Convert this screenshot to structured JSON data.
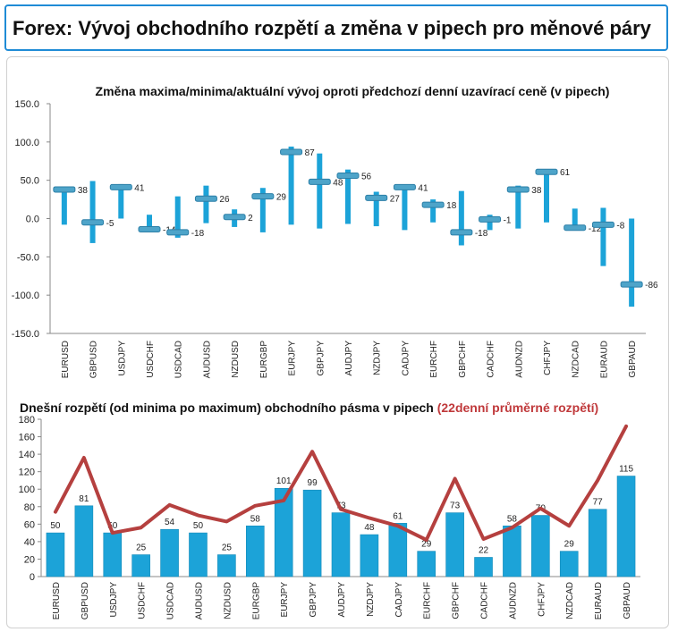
{
  "header": {
    "title": "Forex: Vývoj obchodního rozpětí a změna v pipech pro měnové páry"
  },
  "colors": {
    "accent": "#1f8bd6",
    "bar": "#1ca3d8",
    "line": "#b5403f"
  },
  "chart_data": [
    {
      "type": "bar",
      "title": "Změna maxima/minima/aktuální vývoj oproti předchozí denní uzavírací ceně (v pipech)",
      "categories": [
        "EURUSD",
        "GBPUSD",
        "USDJPY",
        "USDCHF",
        "USDCAD",
        "AUDUSD",
        "NZDUSD",
        "EURGBP",
        "EURJPY",
        "GBPJPY",
        "AUDJPY",
        "NZDJPY",
        "CADJPY",
        "EURCHF",
        "GBPCHF",
        "CADCHF",
        "AUDNZD",
        "CHFJPY",
        "NZDCAD",
        "EURAUD",
        "GBPAUD"
      ],
      "series": [
        {
          "values_high": [
            40,
            49,
            45,
            5,
            29,
            43,
            12,
            40,
            94,
            85,
            64,
            35,
            44,
            25,
            36,
            5,
            43,
            64,
            13,
            14,
            0
          ]
        },
        {
          "values_low": [
            -8,
            -32,
            0,
            -18,
            -25,
            -6,
            -11,
            -18,
            -8,
            -13,
            -7,
            -10,
            -15,
            -5,
            -35,
            -15,
            -13,
            -5,
            -12,
            -62,
            -115
          ]
        },
        {
          "values": [
            38,
            -5,
            41,
            -14,
            -18,
            26,
            2,
            29,
            87,
            48,
            56,
            27,
            41,
            18,
            -18,
            -1,
            38,
            61,
            -12,
            -8,
            -86
          ]
        }
      ],
      "data_labels": [
        "38",
        "-5",
        "41",
        "-14",
        "-18",
        "26",
        "2",
        "29",
        "87",
        "48",
        "56",
        "27",
        "41",
        "18",
        "-18",
        "-1",
        "38",
        "61",
        "-12",
        "-8",
        "-86"
      ],
      "ylim": [
        -150,
        150
      ],
      "yticks": [
        "150.0",
        "100.0",
        "50.0",
        "0.0",
        "-50.0",
        "-100.0",
        "-150.0"
      ],
      "grid": false
    },
    {
      "type": "bar",
      "title": "Dnešní rozpětí (od minima po maximum) obchodního pásma v pipech",
      "title_red": "(22denní průměrné rozpětí)",
      "categories": [
        "EURUSD",
        "GBPUSD",
        "USDJPY",
        "USDCHF",
        "USDCAD",
        "AUDUSD",
        "NZDUSD",
        "EURGBP",
        "EURJPY",
        "GBPJPY",
        "AUDJPY",
        "NZDJPY",
        "CADJPY",
        "EURCHF",
        "GBPCHF",
        "CADCHF",
        "AUDNZD",
        "CHFJPY",
        "NZDCAD",
        "EURAUD",
        "GBPAUD"
      ],
      "series": [
        {
          "values": [
            50,
            81,
            50,
            25,
            54,
            50,
            25,
            58,
            101,
            99,
            73,
            48,
            61,
            29,
            73,
            22,
            58,
            70,
            29,
            77,
            115
          ]
        },
        {
          "type": "line",
          "values": [
            74,
            136,
            50,
            56,
            82,
            70,
            63,
            81,
            87,
            143,
            77,
            67,
            58,
            42,
            112,
            43,
            56,
            78,
            58,
            110,
            172
          ]
        }
      ],
      "data_labels": [
        "50",
        "81",
        "50",
        "25",
        "54",
        "50",
        "25",
        "58",
        "101",
        "99",
        "73",
        "48",
        "61",
        "29",
        "73",
        "22",
        "58",
        "70",
        "29",
        "77",
        "115"
      ],
      "ylim": [
        0,
        180
      ],
      "yticks": [
        "180",
        "160",
        "140",
        "120",
        "100",
        "80",
        "60",
        "40",
        "20",
        "0"
      ],
      "grid": false
    }
  ]
}
